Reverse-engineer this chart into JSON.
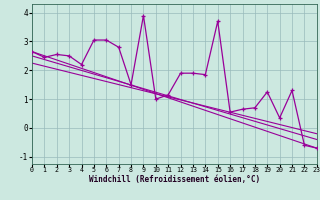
{
  "xlabel": "Windchill (Refroidissement éolien,°C)",
  "bg_color": "#cce8e0",
  "line_color": "#990099",
  "grid_color": "#99bbbb",
  "series1_x": [
    0,
    1,
    2,
    3,
    4,
    5,
    6,
    7,
    8,
    9,
    10,
    11,
    12,
    13,
    14,
    15,
    16,
    17,
    18,
    19,
    20,
    21,
    22,
    23
  ],
  "series1_y": [
    2.65,
    2.45,
    2.55,
    2.5,
    2.2,
    3.05,
    3.05,
    2.8,
    1.5,
    3.9,
    1.0,
    1.15,
    1.9,
    1.9,
    1.85,
    3.7,
    0.55,
    0.65,
    0.7,
    1.25,
    0.35,
    1.3,
    -0.6,
    -0.7
  ],
  "series2_x": [
    0,
    23
  ],
  "series2_y": [
    2.65,
    -0.7
  ],
  "series3_x": [
    0,
    23
  ],
  "series3_y": [
    2.5,
    -0.4
  ],
  "series4_x": [
    0,
    23
  ],
  "series4_y": [
    2.25,
    -0.2
  ],
  "xlim": [
    0,
    23
  ],
  "ylim": [
    -1.25,
    4.3
  ],
  "xticks": [
    0,
    1,
    2,
    3,
    4,
    5,
    6,
    7,
    8,
    9,
    10,
    11,
    12,
    13,
    14,
    15,
    16,
    17,
    18,
    19,
    20,
    21,
    22,
    23
  ],
  "yticks": [
    -1,
    0,
    1,
    2,
    3,
    4
  ]
}
